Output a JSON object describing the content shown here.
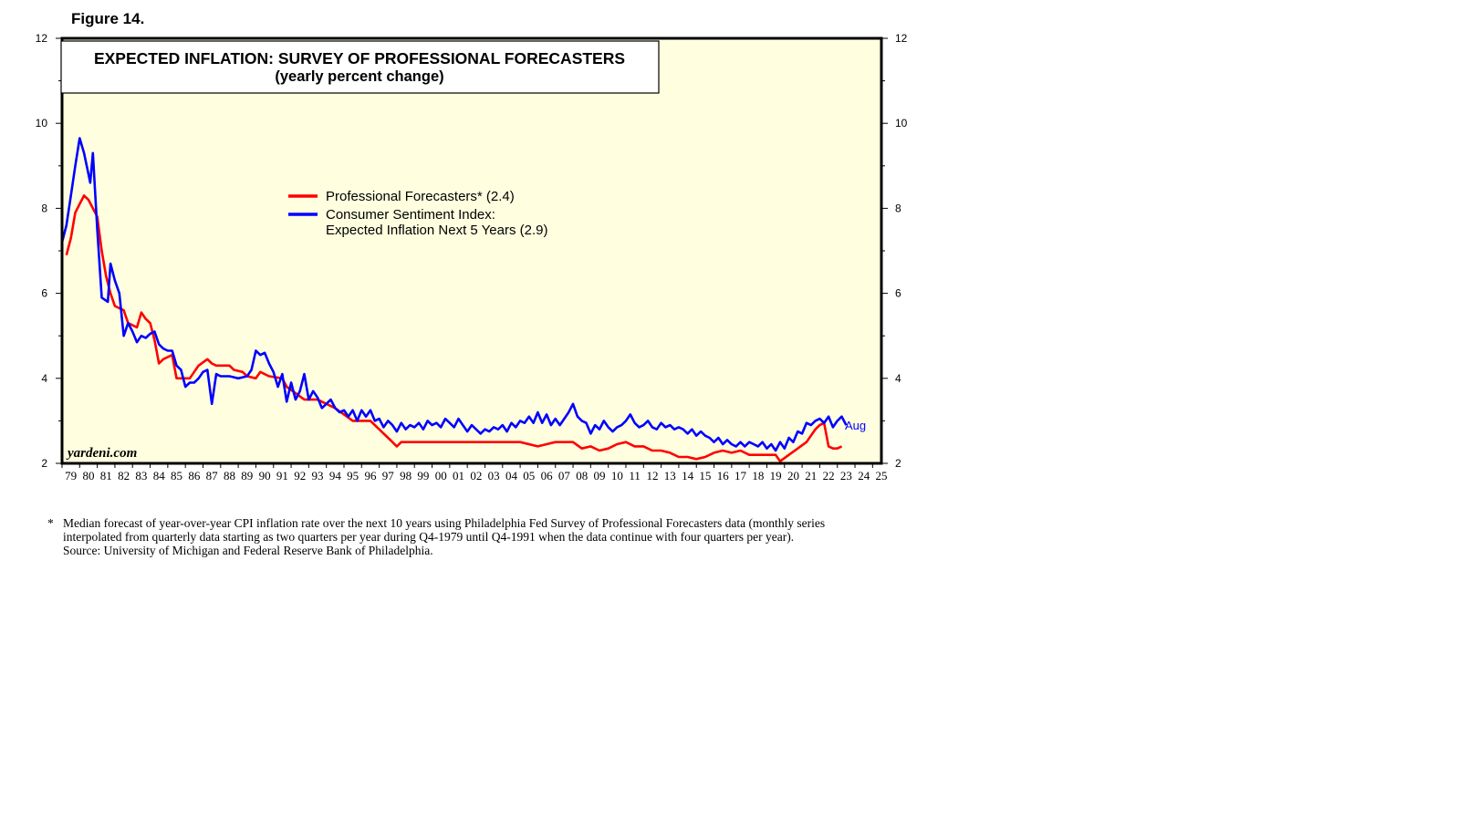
{
  "figure_label": "Figure 14.",
  "footnote": {
    "marker": "*",
    "lines": [
      "Median forecast of year-over-year CPI inflation rate over the next 10 years using Philadelphia Fed Survey of Professional Forecasters data (monthly series",
      "interpolated from quarterly data starting as two quarters per year during Q4-1979 until Q4-1991 when the data continue with four quarters per year).",
      "Source: University of Michigan and Federal Reserve Bank of Philadelphia."
    ]
  },
  "chart_data": {
    "type": "line",
    "title": "EXPECTED INFLATION: SURVEY OF PROFESSIONAL FORECASTERS",
    "subtitle": "(yearly percent change)",
    "watermark": "yardeni.com",
    "xlabel": "",
    "ylabel": "",
    "xlim": [
      1979.0,
      2025.5
    ],
    "ylim": [
      2,
      12
    ],
    "y_ticks": [
      "2",
      "4",
      "6",
      "8",
      "10",
      "12"
    ],
    "x_ticks": [
      "79",
      "80",
      "81",
      "82",
      "83",
      "84",
      "85",
      "86",
      "87",
      "88",
      "89",
      "90",
      "91",
      "92",
      "93",
      "94",
      "95",
      "96",
      "97",
      "98",
      "99",
      "00",
      "01",
      "02",
      "03",
      "04",
      "05",
      "06",
      "07",
      "08",
      "09",
      "10",
      "11",
      "12",
      "13",
      "14",
      "15",
      "16",
      "17",
      "18",
      "19",
      "20",
      "21",
      "22",
      "23",
      "24",
      "25"
    ],
    "grid": false,
    "background_color": "#ffffe0",
    "legend": {
      "position": "upper-center"
    },
    "annotation": "Aug",
    "series": [
      {
        "name": "Professional Forecasters* (2.4)",
        "color": "#ff0000",
        "points": [
          [
            1979.25,
            6.9
          ],
          [
            1979.5,
            7.3
          ],
          [
            1979.75,
            7.9
          ],
          [
            1980.0,
            8.1
          ],
          [
            1980.25,
            8.3
          ],
          [
            1980.5,
            8.2
          ],
          [
            1980.75,
            8.0
          ],
          [
            1981.0,
            7.8
          ],
          [
            1981.25,
            7.0
          ],
          [
            1981.5,
            6.4
          ],
          [
            1981.75,
            6.0
          ],
          [
            1982.0,
            5.7
          ],
          [
            1982.5,
            5.6
          ],
          [
            1982.75,
            5.3
          ],
          [
            1983.25,
            5.2
          ],
          [
            1983.5,
            5.55
          ],
          [
            1983.75,
            5.4
          ],
          [
            1984.0,
            5.3
          ],
          [
            1984.25,
            4.9
          ],
          [
            1984.5,
            4.35
          ],
          [
            1984.75,
            4.45
          ],
          [
            1985.25,
            4.55
          ],
          [
            1985.5,
            4.0
          ],
          [
            1985.75,
            4.0
          ],
          [
            1986.25,
            4.0
          ],
          [
            1986.5,
            4.15
          ],
          [
            1986.75,
            4.3
          ],
          [
            1987.25,
            4.45
          ],
          [
            1987.5,
            4.35
          ],
          [
            1987.75,
            4.3
          ],
          [
            1988.5,
            4.3
          ],
          [
            1988.75,
            4.2
          ],
          [
            1989.25,
            4.15
          ],
          [
            1989.5,
            4.05
          ],
          [
            1990.0,
            4.0
          ],
          [
            1990.25,
            4.15
          ],
          [
            1990.75,
            4.05
          ],
          [
            1991.5,
            4.0
          ],
          [
            1991.75,
            3.8
          ],
          [
            1992.25,
            3.65
          ],
          [
            1992.75,
            3.5
          ],
          [
            1993.5,
            3.5
          ],
          [
            1994.0,
            3.4
          ],
          [
            1994.5,
            3.3
          ],
          [
            1995.0,
            3.15
          ],
          [
            1995.5,
            3.0
          ],
          [
            1996.5,
            3.0
          ],
          [
            1996.75,
            2.9
          ],
          [
            1997.0,
            2.8
          ],
          [
            1997.5,
            2.6
          ],
          [
            1997.75,
            2.5
          ],
          [
            1998.0,
            2.4
          ],
          [
            1998.25,
            2.5
          ],
          [
            1999.5,
            2.5
          ],
          [
            2001.0,
            2.5
          ],
          [
            2002.0,
            2.5
          ],
          [
            2002.5,
            2.5
          ],
          [
            2003.0,
            2.5
          ],
          [
            2004.0,
            2.5
          ],
          [
            2005.0,
            2.5
          ],
          [
            2006.0,
            2.4
          ],
          [
            2006.5,
            2.45
          ],
          [
            2007.0,
            2.5
          ],
          [
            2008.0,
            2.5
          ],
          [
            2008.5,
            2.35
          ],
          [
            2009.0,
            2.4
          ],
          [
            2009.5,
            2.3
          ],
          [
            2010.0,
            2.35
          ],
          [
            2010.5,
            2.45
          ],
          [
            2011.0,
            2.5
          ],
          [
            2011.5,
            2.4
          ],
          [
            2012.0,
            2.4
          ],
          [
            2012.5,
            2.3
          ],
          [
            2013.0,
            2.3
          ],
          [
            2013.5,
            2.25
          ],
          [
            2014.0,
            2.15
          ],
          [
            2014.5,
            2.15
          ],
          [
            2015.0,
            2.1
          ],
          [
            2015.5,
            2.15
          ],
          [
            2016.0,
            2.25
          ],
          [
            2016.5,
            2.3
          ],
          [
            2017.0,
            2.25
          ],
          [
            2017.5,
            2.3
          ],
          [
            2018.0,
            2.2
          ],
          [
            2018.5,
            2.2
          ],
          [
            2019.0,
            2.2
          ],
          [
            2019.5,
            2.2
          ],
          [
            2019.75,
            2.05
          ],
          [
            2020.25,
            2.2
          ],
          [
            2020.75,
            2.35
          ],
          [
            2021.25,
            2.5
          ],
          [
            2021.75,
            2.8
          ],
          [
            2022.0,
            2.9
          ],
          [
            2022.25,
            2.95
          ],
          [
            2022.5,
            2.4
          ],
          [
            2022.75,
            2.35
          ],
          [
            2023.0,
            2.35
          ],
          [
            2023.25,
            2.4
          ]
        ]
      },
      {
        "name": "Consumer Sentiment Index: Expected Inflation Next 5 Years (2.9)",
        "color": "#0000ff",
        "points": [
          [
            1979.0,
            7.2
          ],
          [
            1979.25,
            7.6
          ],
          [
            1979.5,
            8.3
          ],
          [
            1979.75,
            9.0
          ],
          [
            1980.0,
            9.65
          ],
          [
            1980.25,
            9.3
          ],
          [
            1980.5,
            8.8
          ],
          [
            1980.6,
            8.6
          ],
          [
            1980.75,
            9.3
          ],
          [
            1981.0,
            7.5
          ],
          [
            1981.25,
            5.9
          ],
          [
            1981.6,
            5.8
          ],
          [
            1981.75,
            6.7
          ],
          [
            1982.0,
            6.3
          ],
          [
            1982.25,
            6.0
          ],
          [
            1982.5,
            5.0
          ],
          [
            1982.75,
            5.3
          ],
          [
            1983.0,
            5.1
          ],
          [
            1983.25,
            4.85
          ],
          [
            1983.5,
            5.0
          ],
          [
            1983.75,
            4.95
          ],
          [
            1984.0,
            5.05
          ],
          [
            1984.25,
            5.1
          ],
          [
            1984.5,
            4.8
          ],
          [
            1984.75,
            4.7
          ],
          [
            1985.0,
            4.65
          ],
          [
            1985.25,
            4.65
          ],
          [
            1985.5,
            4.3
          ],
          [
            1985.75,
            4.2
          ],
          [
            1986.0,
            3.8
          ],
          [
            1986.25,
            3.9
          ],
          [
            1986.5,
            3.9
          ],
          [
            1986.75,
            4.0
          ],
          [
            1987.0,
            4.15
          ],
          [
            1987.25,
            4.2
          ],
          [
            1987.5,
            3.4
          ],
          [
            1987.75,
            4.1
          ],
          [
            1988.0,
            4.05
          ],
          [
            1988.5,
            4.05
          ],
          [
            1989.0,
            4.0
          ],
          [
            1989.5,
            4.05
          ],
          [
            1989.75,
            4.2
          ],
          [
            1990.0,
            4.65
          ],
          [
            1990.25,
            4.55
          ],
          [
            1990.5,
            4.6
          ],
          [
            1990.75,
            4.35
          ],
          [
            1991.0,
            4.15
          ],
          [
            1991.25,
            3.8
          ],
          [
            1991.5,
            4.1
          ],
          [
            1991.75,
            3.45
          ],
          [
            1992.0,
            3.9
          ],
          [
            1992.25,
            3.5
          ],
          [
            1992.5,
            3.7
          ],
          [
            1992.75,
            4.1
          ],
          [
            1993.0,
            3.5
          ],
          [
            1993.25,
            3.7
          ],
          [
            1993.5,
            3.55
          ],
          [
            1993.75,
            3.3
          ],
          [
            1994.0,
            3.4
          ],
          [
            1994.25,
            3.5
          ],
          [
            1994.5,
            3.3
          ],
          [
            1994.75,
            3.2
          ],
          [
            1995.0,
            3.25
          ],
          [
            1995.25,
            3.1
          ],
          [
            1995.5,
            3.25
          ],
          [
            1995.75,
            3.0
          ],
          [
            1996.0,
            3.25
          ],
          [
            1996.25,
            3.1
          ],
          [
            1996.5,
            3.25
          ],
          [
            1996.75,
            3.0
          ],
          [
            1997.0,
            3.05
          ],
          [
            1997.25,
            2.85
          ],
          [
            1997.5,
            3.0
          ],
          [
            1997.75,
            2.9
          ],
          [
            1998.0,
            2.75
          ],
          [
            1998.25,
            2.95
          ],
          [
            1998.5,
            2.8
          ],
          [
            1998.75,
            2.9
          ],
          [
            1999.0,
            2.85
          ],
          [
            1999.25,
            2.95
          ],
          [
            1999.5,
            2.8
          ],
          [
            1999.75,
            3.0
          ],
          [
            2000.0,
            2.9
          ],
          [
            2000.25,
            2.95
          ],
          [
            2000.5,
            2.85
          ],
          [
            2000.75,
            3.05
          ],
          [
            2001.0,
            2.95
          ],
          [
            2001.25,
            2.85
          ],
          [
            2001.5,
            3.05
          ],
          [
            2001.75,
            2.9
          ],
          [
            2002.0,
            2.75
          ],
          [
            2002.25,
            2.9
          ],
          [
            2002.5,
            2.8
          ],
          [
            2002.75,
            2.7
          ],
          [
            2003.0,
            2.8
          ],
          [
            2003.25,
            2.75
          ],
          [
            2003.5,
            2.85
          ],
          [
            2003.75,
            2.8
          ],
          [
            2004.0,
            2.9
          ],
          [
            2004.25,
            2.75
          ],
          [
            2004.5,
            2.95
          ],
          [
            2004.75,
            2.85
          ],
          [
            2005.0,
            3.0
          ],
          [
            2005.25,
            2.95
          ],
          [
            2005.5,
            3.1
          ],
          [
            2005.75,
            2.95
          ],
          [
            2006.0,
            3.2
          ],
          [
            2006.25,
            2.95
          ],
          [
            2006.5,
            3.15
          ],
          [
            2006.75,
            2.9
          ],
          [
            2007.0,
            3.05
          ],
          [
            2007.25,
            2.9
          ],
          [
            2007.5,
            3.05
          ],
          [
            2007.75,
            3.2
          ],
          [
            2008.0,
            3.4
          ],
          [
            2008.25,
            3.1
          ],
          [
            2008.5,
            3.0
          ],
          [
            2008.75,
            2.95
          ],
          [
            2009.0,
            2.7
          ],
          [
            2009.25,
            2.9
          ],
          [
            2009.5,
            2.8
          ],
          [
            2009.75,
            3.0
          ],
          [
            2010.0,
            2.85
          ],
          [
            2010.25,
            2.75
          ],
          [
            2010.5,
            2.85
          ],
          [
            2010.75,
            2.9
          ],
          [
            2011.0,
            3.0
          ],
          [
            2011.25,
            3.15
          ],
          [
            2011.5,
            2.95
          ],
          [
            2011.75,
            2.85
          ],
          [
            2012.0,
            2.9
          ],
          [
            2012.25,
            3.0
          ],
          [
            2012.5,
            2.85
          ],
          [
            2012.75,
            2.8
          ],
          [
            2013.0,
            2.95
          ],
          [
            2013.25,
            2.85
          ],
          [
            2013.5,
            2.9
          ],
          [
            2013.75,
            2.8
          ],
          [
            2014.0,
            2.85
          ],
          [
            2014.25,
            2.8
          ],
          [
            2014.5,
            2.7
          ],
          [
            2014.75,
            2.8
          ],
          [
            2015.0,
            2.65
          ],
          [
            2015.25,
            2.75
          ],
          [
            2015.5,
            2.65
          ],
          [
            2015.75,
            2.6
          ],
          [
            2016.0,
            2.5
          ],
          [
            2016.25,
            2.6
          ],
          [
            2016.5,
            2.45
          ],
          [
            2016.75,
            2.55
          ],
          [
            2017.0,
            2.45
          ],
          [
            2017.25,
            2.4
          ],
          [
            2017.5,
            2.5
          ],
          [
            2017.75,
            2.4
          ],
          [
            2018.0,
            2.5
          ],
          [
            2018.25,
            2.45
          ],
          [
            2018.5,
            2.4
          ],
          [
            2018.75,
            2.5
          ],
          [
            2019.0,
            2.35
          ],
          [
            2019.25,
            2.45
          ],
          [
            2019.5,
            2.3
          ],
          [
            2019.75,
            2.5
          ],
          [
            2020.0,
            2.35
          ],
          [
            2020.25,
            2.6
          ],
          [
            2020.5,
            2.5
          ],
          [
            2020.75,
            2.75
          ],
          [
            2021.0,
            2.7
          ],
          [
            2021.25,
            2.95
          ],
          [
            2021.5,
            2.9
          ],
          [
            2021.75,
            3.0
          ],
          [
            2022.0,
            3.05
          ],
          [
            2022.25,
            2.95
          ],
          [
            2022.5,
            3.1
          ],
          [
            2022.75,
            2.85
          ],
          [
            2023.0,
            3.0
          ],
          [
            2023.25,
            3.1
          ],
          [
            2023.5,
            2.9
          ]
        ]
      }
    ]
  }
}
